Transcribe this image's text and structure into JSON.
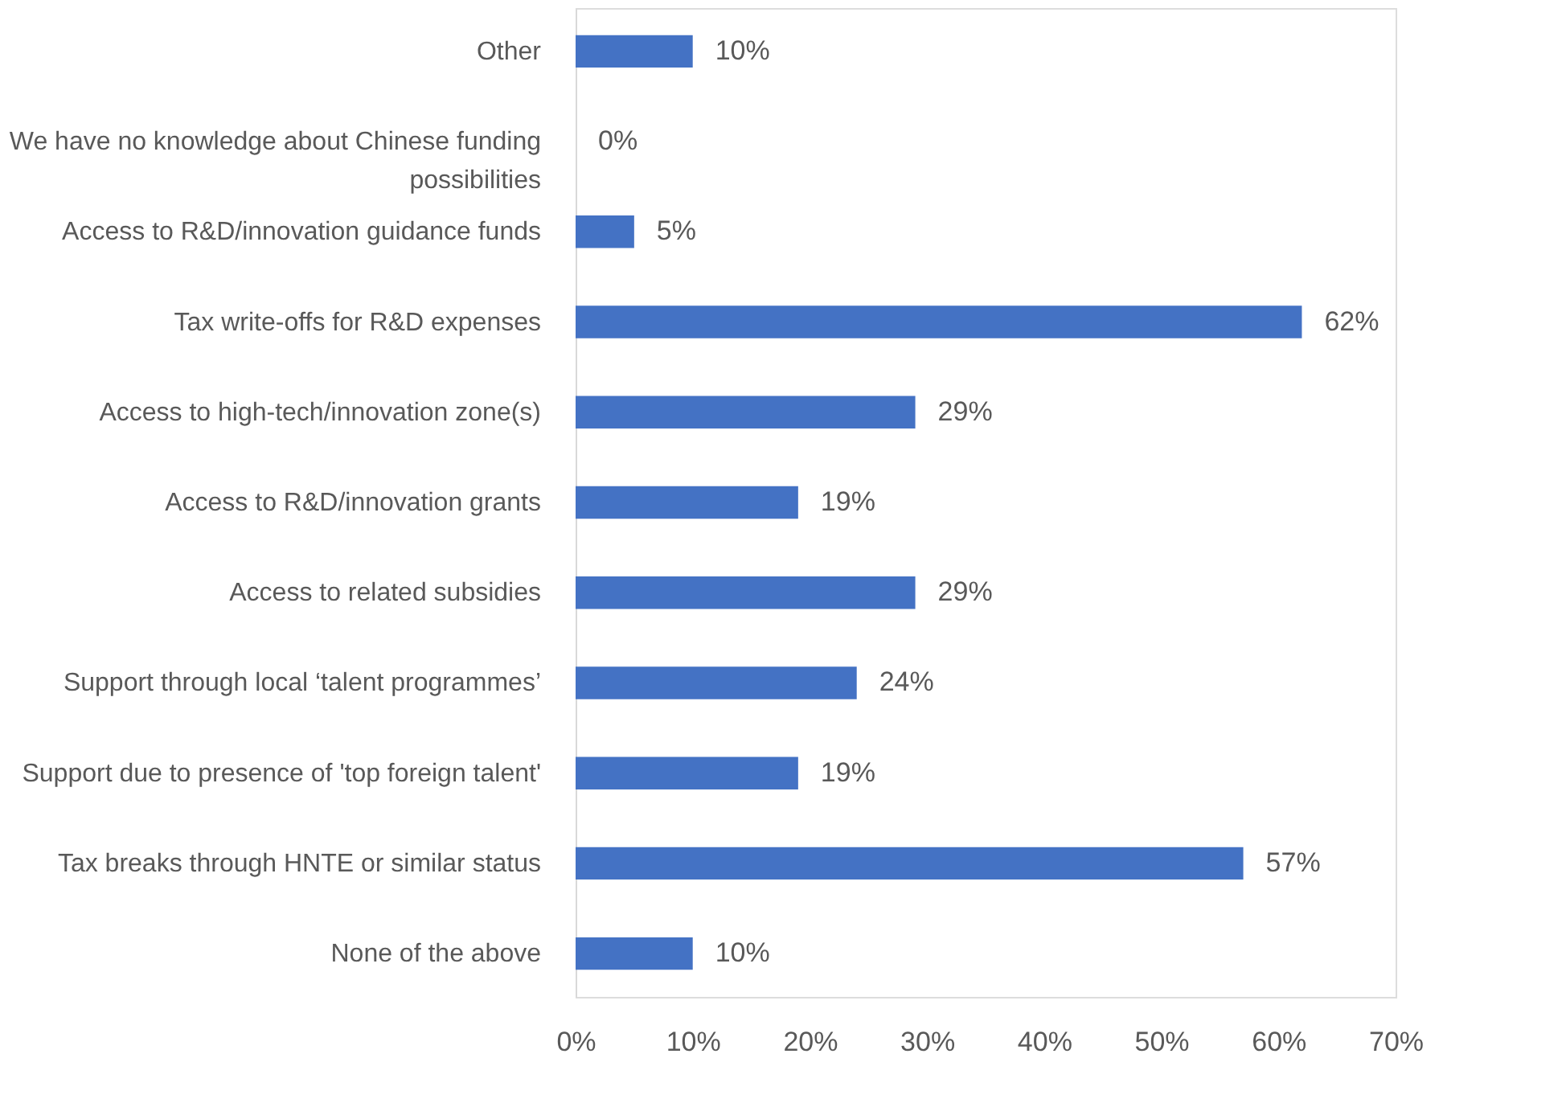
{
  "chart_data": {
    "type": "bar",
    "orientation": "horizontal",
    "categories": [
      "Other",
      "We have no knowledge about Chinese funding possibilities",
      "Access to R&D/innovation guidance funds",
      "Tax write-offs for R&D expenses",
      "Access to high-tech/innovation zone(s)",
      "Access to R&D/innovation grants",
      "Access to related subsidies",
      "Support through local ‘talent programmes’",
      "Support due to presence of 'top foreign talent'",
      "Tax breaks through HNTE or similar status",
      "None of the above"
    ],
    "values": [
      10,
      0,
      5,
      62,
      29,
      19,
      29,
      24,
      19,
      57,
      10
    ],
    "value_labels": [
      "10%",
      "0%",
      "5%",
      "62%",
      "29%",
      "19%",
      "29%",
      "24%",
      "19%",
      "57%",
      "10%"
    ],
    "color": "#4472c4",
    "xlim": [
      0,
      70
    ],
    "xticks": [
      {
        "value": 0,
        "label": "0%"
      },
      {
        "value": 10,
        "label": "10%"
      },
      {
        "value": 20,
        "label": "20%"
      },
      {
        "value": 30,
        "label": "30%"
      },
      {
        "value": 40,
        "label": "40%"
      },
      {
        "value": 50,
        "label": "50%"
      },
      {
        "value": 60,
        "label": "60%"
      },
      {
        "value": 70,
        "label": "70%"
      }
    ],
    "grid": false
  }
}
